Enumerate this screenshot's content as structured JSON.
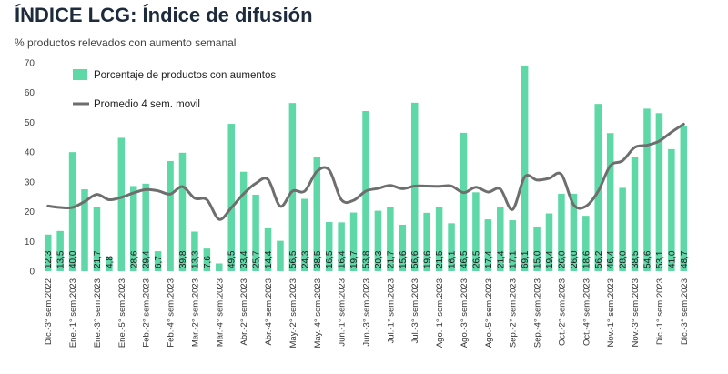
{
  "title": "ÍNDICE LCG: Índice de difusión",
  "subtitle": "% productos relevados con aumento semanal",
  "colors": {
    "bar": "#5fd8a8",
    "line": "#6e6e6e",
    "title": "#1d2b3c"
  },
  "chart_data": {
    "type": "bar",
    "ylim": [
      0,
      70
    ],
    "yticks": [
      0,
      10,
      20,
      30,
      40,
      50,
      60,
      70
    ],
    "grid": false,
    "legend_position": "top-left",
    "series": [
      {
        "name": "Porcentaje de productos con aumentos",
        "type": "bar",
        "values": [
          12.3,
          13.5,
          40.0,
          27.5,
          21.7,
          4.8,
          44.8,
          28.6,
          29.4,
          6.7,
          37.0,
          39.8,
          13.3,
          7.6,
          2.6,
          49.5,
          33.4,
          25.7,
          14.4,
          10.2,
          56.5,
          24.3,
          38.5,
          16.5,
          16.4,
          19.7,
          53.8,
          20.3,
          21.7,
          15.6,
          56.6,
          19.6,
          21.5,
          16.1,
          46.5,
          26.5,
          17.4,
          21.4,
          17.1,
          69.1,
          15.0,
          19.4,
          26.0,
          26.0,
          18.6,
          56.2,
          46.4,
          28.0,
          38.5,
          54.6,
          53.1,
          41.0,
          48.7
        ]
      },
      {
        "name": "Promedio 4 sem. movil",
        "type": "line",
        "values": [
          21.9,
          21.4,
          21.4,
          23.4,
          25.8,
          24.0,
          24.8,
          26.3,
          27.4,
          27.0,
          25.9,
          28.4,
          24.5,
          24.0,
          17.4,
          21.3,
          26.0,
          29.5,
          30.8,
          21.8,
          26.9,
          26.9,
          33.5,
          34.0,
          24.0,
          23.8,
          26.9,
          27.8,
          28.8,
          27.7,
          28.6,
          28.6,
          28.5,
          28.6,
          26.4,
          28.2,
          26.6,
          27.6,
          20.7,
          31.7,
          30.6,
          31.2,
          32.5,
          22.3,
          21.8,
          26.8,
          35.4,
          37.1,
          41.6,
          42.3,
          43.7,
          46.7,
          49.4
        ]
      }
    ],
    "data_labels": [
      "12,3",
      "13,5",
      "40,0",
      "27,5",
      "21,7",
      "4,8",
      "44,8",
      "28,6",
      "29,4",
      "6,7",
      "37,0",
      "39,8",
      "13,3",
      "7,6",
      "2,6",
      "49,5",
      "33,4",
      "25,7",
      "14,4",
      "10,2",
      "56,5",
      "24,3",
      "38,5",
      "16,5",
      "16,4",
      "19,7",
      "53,8",
      "20,3",
      "21,7",
      "15,6",
      "56,6",
      "19,6",
      "21,5",
      "16,1",
      "46,5",
      "26,5",
      "17,4",
      "21,4",
      "17,1",
      "69,1",
      "15,0",
      "19,4",
      "26,0",
      "26,0",
      "18,6",
      "56,2",
      "46,4",
      "28,0",
      "38,5",
      "54,6",
      "53,1",
      "41,0",
      "48,7"
    ],
    "visible_data_labels": [
      true,
      true,
      true,
      false,
      true,
      true,
      false,
      true,
      true,
      true,
      false,
      true,
      true,
      true,
      false,
      true,
      true,
      true,
      true,
      false,
      true,
      true,
      true,
      true,
      true,
      true,
      true,
      true,
      true,
      true,
      true,
      true,
      true,
      true,
      true,
      true,
      true,
      true,
      true,
      true,
      true,
      true,
      true,
      true,
      true,
      true,
      true,
      true,
      true,
      true,
      true,
      true,
      true
    ],
    "x_labels": [
      "Dic.-3° sem.2022",
      "Ene.-1° sem.2023",
      "Ene.-3° sem.2023",
      "Ene.-5° sem.2023",
      "Feb.-2° sem.2023",
      "Feb.-4° sem.2023",
      "Mar.-2° sem.2023",
      "Mar.-4° sem.2023",
      "Abr.-2° sem.2023",
      "Abr.-4° sem.2023",
      "May.-2° sem.2023",
      "May.-4° sem.2023",
      "Jun.-1° sem.2023",
      "Jun.-3° sem.2023",
      "Jul.-1° sem.2023",
      "Jul.-3° sem.2023",
      "Ago.-1° sem.2023",
      "Ago.-3° sem.2023",
      "Ago.-5° sem.2023",
      "Sep.-2° sem.2023",
      "Sep.-4° sem.2023",
      "Oct.-2° sem.2023",
      "Oct.-4° sem.2023",
      "Nov.-1° sem.2023",
      "Nov.-3° sem.2023",
      "Dic.-1° sem.2023",
      "Dic.-3° sem.2023"
    ]
  }
}
